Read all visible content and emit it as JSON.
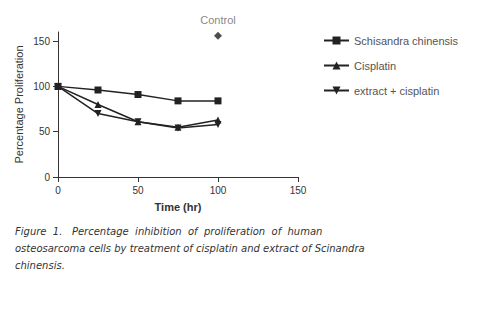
{
  "chart_data": {
    "type": "line",
    "xlabel": "Time (hr)",
    "ylabel": "Percentage Proliferation",
    "x": [
      0,
      25,
      50,
      75,
      100
    ],
    "series": [
      {
        "name": "Schisandra chinensis",
        "color": "#222222",
        "marker": "square",
        "line_style": "solid",
        "values": [
          100,
          96,
          91,
          84,
          84
        ]
      },
      {
        "name": "Cisplatin",
        "color": "#222222",
        "marker": "triangle-up",
        "line_style": "solid",
        "values": [
          100,
          80,
          61,
          55,
          63
        ]
      },
      {
        "name": "extract + cisplatin",
        "color": "#222222",
        "marker": "triangle-down",
        "line_style": "solid",
        "values": [
          100,
          70,
          61,
          54,
          58
        ]
      }
    ],
    "annotations": [
      {
        "text": "Control",
        "x": 100,
        "y": 156,
        "marker": "diamond",
        "color": "#222222"
      }
    ],
    "caption": [
      "Figure  1.   Percentage  inhibition  of  proliferation  of  human",
      "osteosarcoma cells by treatment of cisplatin and extract of Scinandra",
      "chinensis."
    ],
    "xlim": [
      0,
      150
    ],
    "ylim": [
      0,
      160
    ],
    "xticks": [
      0,
      50,
      100,
      150
    ],
    "yticks": [
      0,
      50,
      100,
      150
    ],
    "grid": false,
    "legend": "right"
  }
}
